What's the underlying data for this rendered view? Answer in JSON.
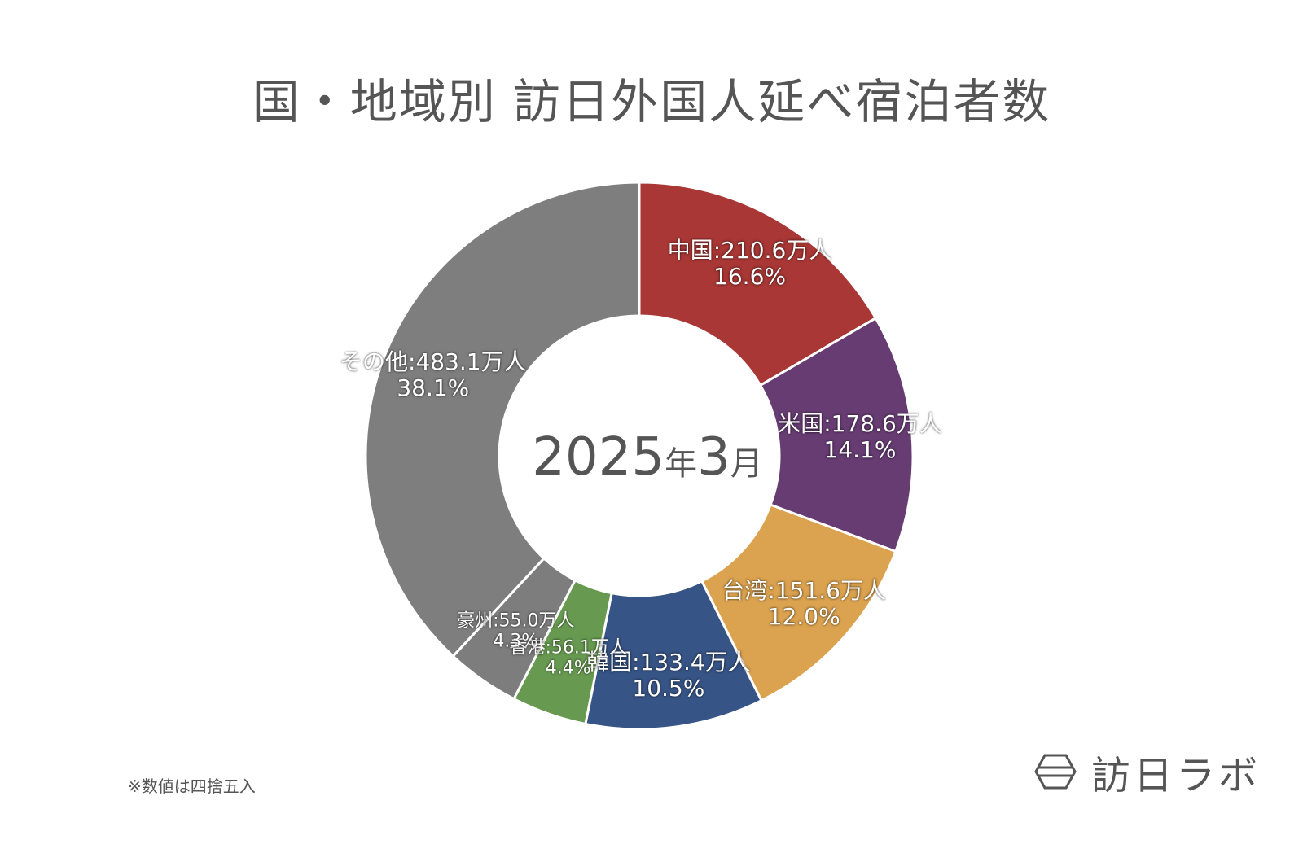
{
  "title": "国・地域別 訪日外国人延べ宿泊者数",
  "center": {
    "year": "2025",
    "year_unit": "年",
    "month": "3",
    "month_unit": "月"
  },
  "note": "※数値は四捨五入",
  "logo": {
    "text": "訪日ラボ",
    "icon": "hexagon-logo-icon"
  },
  "chart_data": {
    "type": "pie",
    "donut": true,
    "unit": "万人",
    "slices": [
      {
        "label": "中国",
        "value": 210.6,
        "text": "中国:210.6万人",
        "percent": 16.6,
        "percent_text": "16.6%",
        "color": "#a83735"
      },
      {
        "label": "米国",
        "value": 178.6,
        "text": "米国:178.6万人",
        "percent": 14.1,
        "percent_text": "14.1%",
        "color": "#673c73"
      },
      {
        "label": "台湾",
        "value": 151.6,
        "text": "台湾:151.6万人",
        "percent": 12.0,
        "percent_text": "12.0%",
        "color": "#dba24f"
      },
      {
        "label": "韓国",
        "value": 133.4,
        "text": "韓国:133.4万人",
        "percent": 10.5,
        "percent_text": "10.5%",
        "color": "#375486"
      },
      {
        "label": "香港",
        "value": 56.1,
        "text": "香港:56.1万人",
        "percent": 4.4,
        "percent_text": "4.4%",
        "color": "#679a50"
      },
      {
        "label": "豪州",
        "value": 55.0,
        "text": "豪州:55.0万人",
        "percent": 4.3,
        "percent_text": "4.3%",
        "color": "#7d7d7d"
      },
      {
        "label": "その他",
        "value": 483.1,
        "text": "その他:483.1万人",
        "percent": 38.1,
        "percent_text": "38.1%",
        "color": "#7d7e7d"
      }
    ]
  }
}
